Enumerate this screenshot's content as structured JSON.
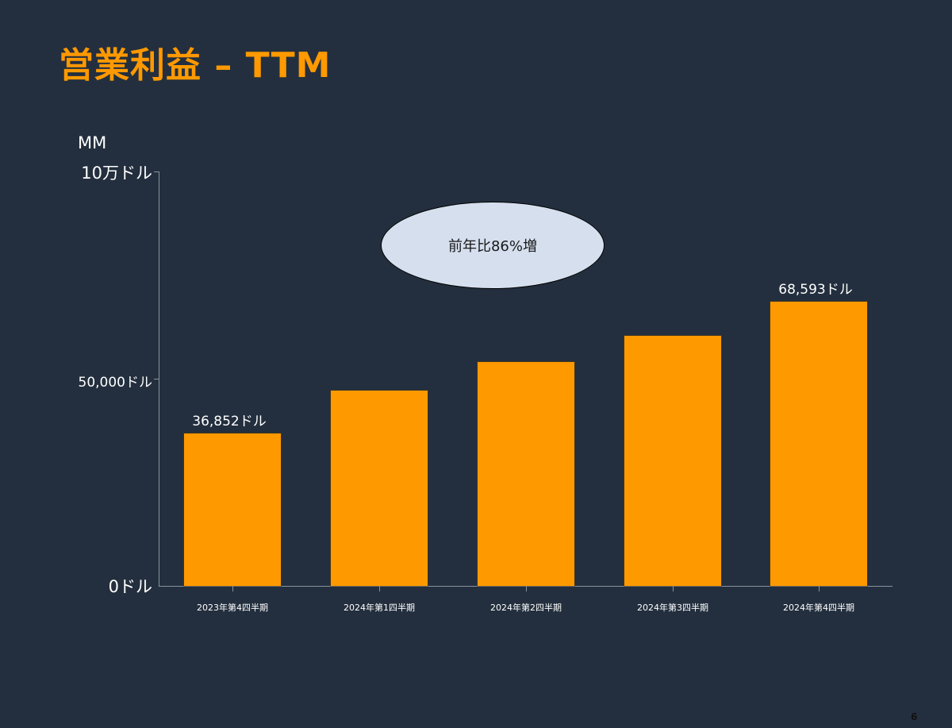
{
  "slide": {
    "title": "営業利益 – TTM",
    "page_number": "6",
    "callout": "前年比86%増",
    "colors": {
      "background": "#232f3e",
      "accent": "#ff9900",
      "callout_fill": "#d5dfee"
    }
  },
  "axis": {
    "unit": "MM",
    "y_ticks": [
      {
        "label": "10万ドル",
        "value": 100000
      },
      {
        "label": "50,000ドル",
        "value": 50000
      },
      {
        "label": "0ドル",
        "value": 0
      }
    ]
  },
  "chart_data": {
    "type": "bar",
    "title": "営業利益 – TTM",
    "xlabel": "",
    "ylabel": "MM",
    "ylim": [
      0,
      100000
    ],
    "grid": false,
    "legend": "none",
    "categories": [
      "2023年第4四半期",
      "2024年第1四半期",
      "2024年第2四半期",
      "2024年第3四半期",
      "2024年第4四半期"
    ],
    "values": [
      36852,
      47100,
      54000,
      60300,
      68593
    ],
    "data_labels": [
      "36,852ドル",
      "",
      "",
      "",
      "68,593ドル"
    ],
    "y_tick_labels": [
      "0ドル",
      "50,000ドル",
      "10万ドル"
    ],
    "annotations": [
      "前年比86%増"
    ],
    "bar_color": "#ff9900"
  }
}
